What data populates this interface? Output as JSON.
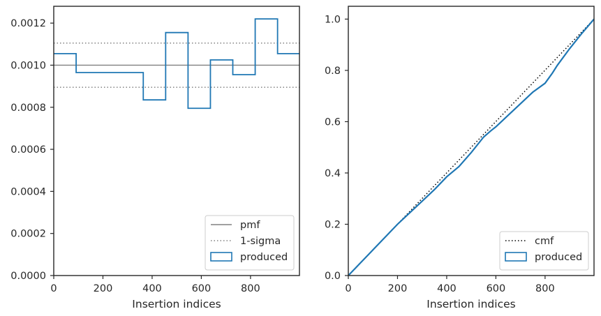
{
  "chart_data": [
    {
      "type": "step",
      "xlabel": "Insertion indices",
      "ylabel": "",
      "xlim": [
        0,
        999
      ],
      "ylim": [
        0,
        0.00128
      ],
      "xticks": [
        0,
        200,
        400,
        600,
        800
      ],
      "xtick_labels": [
        "0",
        "200",
        "400",
        "600",
        "800"
      ],
      "yticks": [
        0,
        0.0002,
        0.0004,
        0.0006,
        0.0008,
        0.001,
        0.0012
      ],
      "ytick_labels": [
        "0.0000",
        "0.0002",
        "0.0004",
        "0.0006",
        "0.0008",
        "0.0010",
        "0.0012"
      ],
      "pmf": 0.001,
      "sigma_band": [
        0.000895,
        0.001105
      ],
      "bin_edges": [
        0,
        91,
        182,
        273,
        364,
        455,
        546,
        637,
        728,
        819,
        910,
        999
      ],
      "bin_values": [
        0.001055,
        0.000965,
        0.000965,
        0.000965,
        0.000835,
        0.001155,
        0.000795,
        0.001025,
        0.000955,
        0.00122,
        0.001055
      ],
      "legend": {
        "position": "lower right",
        "entries": [
          {
            "label": "pmf",
            "style": "solid",
            "color": "#808080"
          },
          {
            "label": "1-sigma",
            "style": "dotted",
            "color": "#808080"
          },
          {
            "label": "produced",
            "style": "box",
            "color": "#1f77b4"
          }
        ]
      },
      "grid": false
    },
    {
      "type": "line",
      "xlabel": "Insertion indices",
      "ylabel": "",
      "xlim": [
        0,
        999
      ],
      "ylim": [
        0,
        1.05
      ],
      "xticks": [
        0,
        200,
        400,
        600,
        800
      ],
      "xtick_labels": [
        "0",
        "200",
        "400",
        "600",
        "800"
      ],
      "yticks": [
        0,
        0.2,
        0.4,
        0.6,
        0.8,
        1.0
      ],
      "ytick_labels": [
        "0.0",
        "0.2",
        "0.4",
        "0.6",
        "0.8",
        "1.0"
      ],
      "series": [
        {
          "name": "cmf",
          "style": "dotted",
          "color": "#000000",
          "x": [
            0,
            999
          ],
          "y": [
            0,
            1.0
          ]
        },
        {
          "name": "produced",
          "style": "line",
          "color": "#1f77b4",
          "x": [
            0,
            20,
            50,
            80,
            100,
            150,
            200,
            250,
            300,
            350,
            380,
            400,
            450,
            500,
            550,
            580,
            600,
            650,
            700,
            750,
            800,
            830,
            850,
            900,
            950,
            999
          ],
          "y": [
            0,
            0.02,
            0.05,
            0.08,
            0.1,
            0.15,
            0.2,
            0.245,
            0.29,
            0.335,
            0.365,
            0.385,
            0.425,
            0.48,
            0.54,
            0.565,
            0.58,
            0.625,
            0.67,
            0.715,
            0.75,
            0.79,
            0.82,
            0.885,
            0.945,
            1.0
          ]
        }
      ],
      "legend": {
        "position": "lower right",
        "entries": [
          {
            "label": "cmf",
            "style": "dotted",
            "color": "#000000"
          },
          {
            "label": "produced",
            "style": "box",
            "color": "#1f77b4"
          }
        ]
      },
      "grid": false
    }
  ]
}
